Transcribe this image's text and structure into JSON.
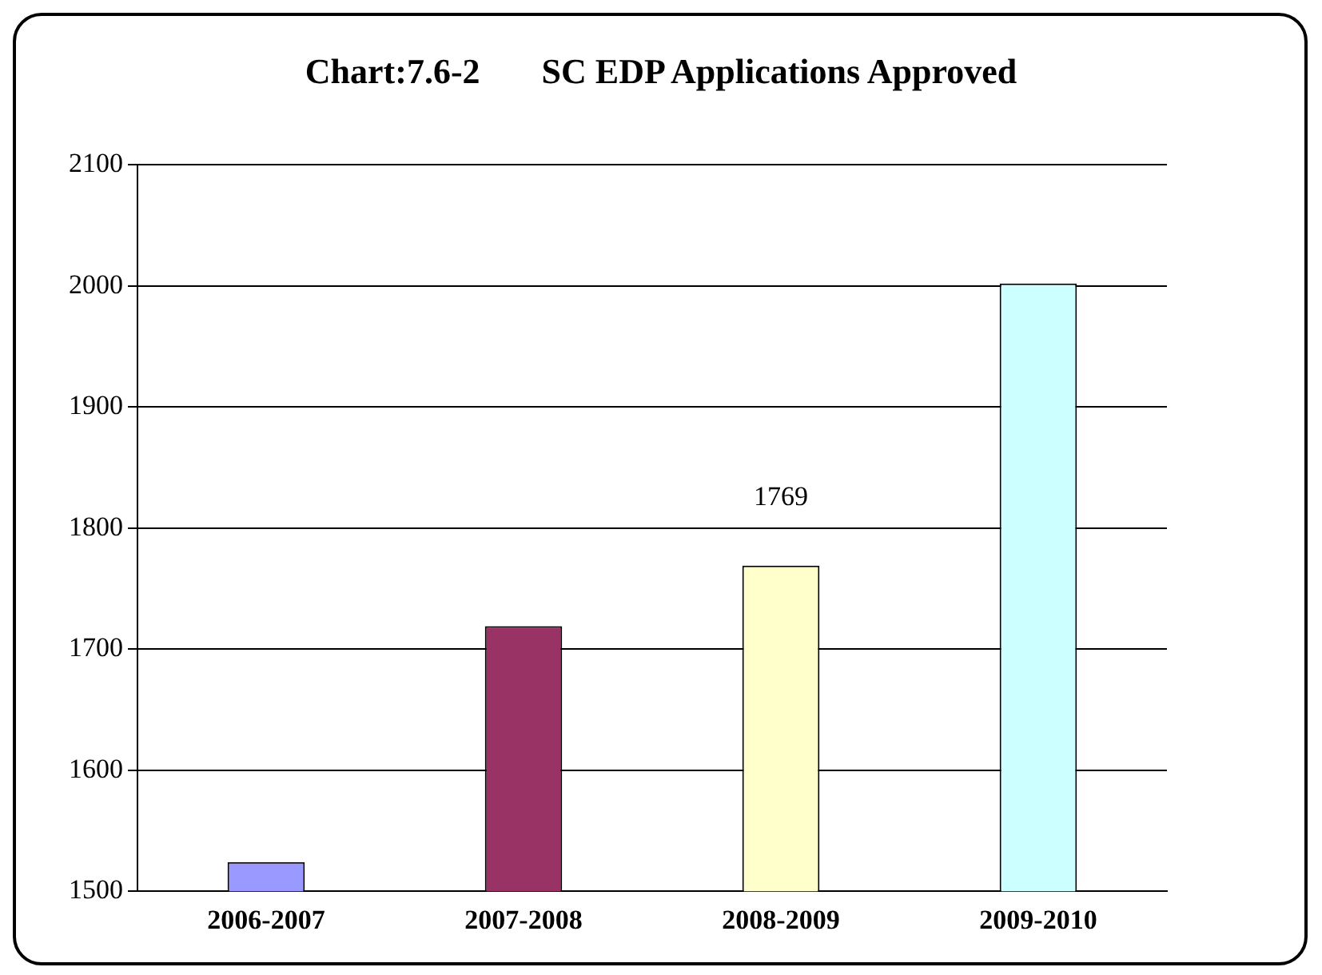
{
  "chart_data": {
    "type": "bar",
    "title": "Chart:7.6-2       SC EDP Applications Approved",
    "categories": [
      "2006-2007",
      "2007-2008",
      "2008-2009",
      "2009-2010"
    ],
    "values": [
      1524,
      1719,
      1769,
      2002
    ],
    "colors": [
      "#9999ff",
      "#993366",
      "#ffffcc",
      "#ccffff"
    ],
    "value_labels": [
      null,
      null,
      "1769",
      null
    ],
    "ylim": [
      1500,
      2100
    ],
    "yticks": [
      1500,
      1600,
      1700,
      1800,
      1900,
      2000,
      2100
    ],
    "grid": "y",
    "legend": false
  }
}
